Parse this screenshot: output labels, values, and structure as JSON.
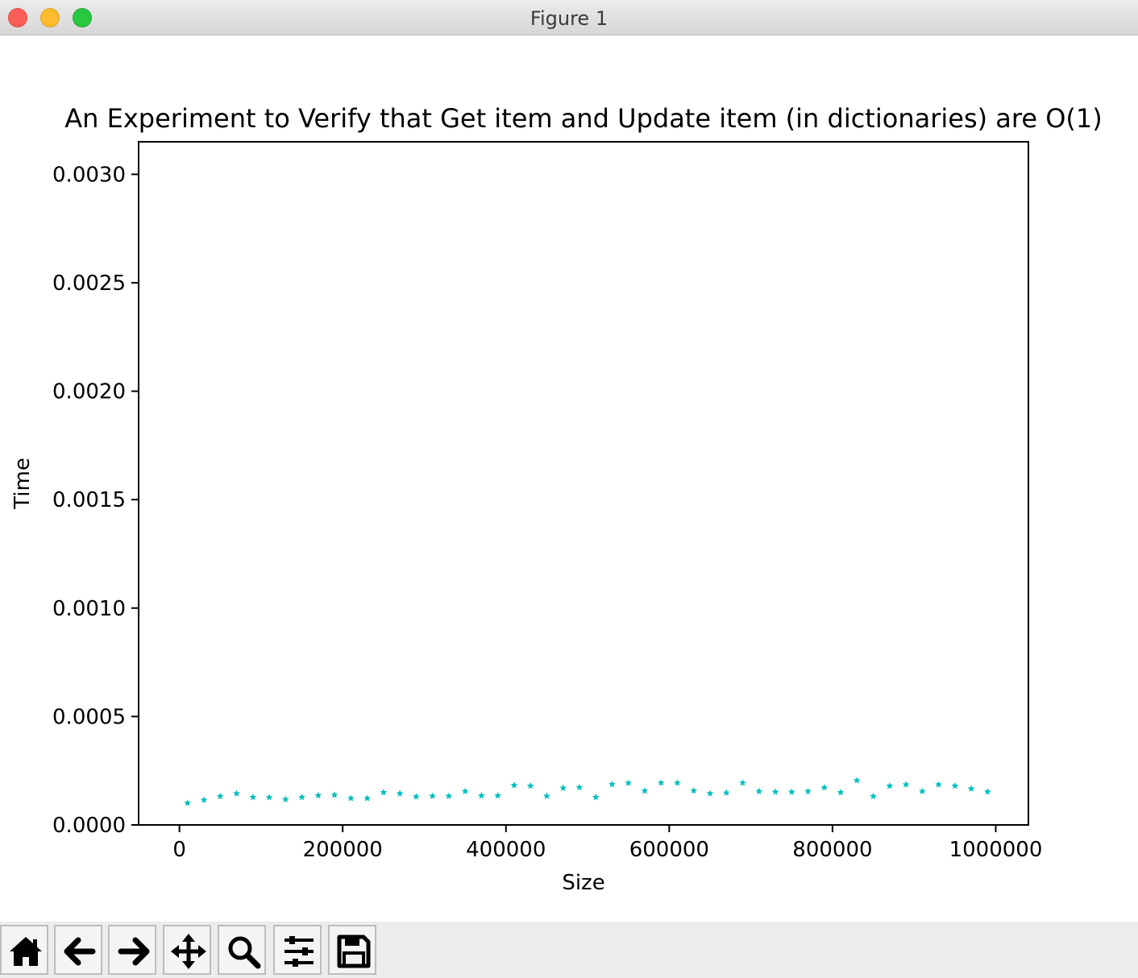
{
  "window": {
    "title": "Figure 1"
  },
  "toolbar": {
    "buttons": [
      {
        "name": "home-button",
        "icon": "home-icon"
      },
      {
        "name": "back-button",
        "icon": "arrow-left-icon"
      },
      {
        "name": "forward-button",
        "icon": "arrow-right-icon"
      },
      {
        "name": "pan-button",
        "icon": "move-icon"
      },
      {
        "name": "zoom-button",
        "icon": "magnifier-icon"
      },
      {
        "name": "configure-subplots-button",
        "icon": "sliders-icon"
      },
      {
        "name": "save-button",
        "icon": "floppy-disk-icon"
      }
    ]
  },
  "chart_data": {
    "type": "scatter",
    "title": "An Experiment to Verify that Get item and Update item (in dictionaries) are O(1)",
    "xlabel": "Size",
    "ylabel": "Time",
    "xlim": [
      -50000,
      1040000
    ],
    "ylim": [
      0,
      0.00315
    ],
    "xticks": [
      0,
      200000,
      400000,
      600000,
      800000,
      1000000
    ],
    "xtick_labels": [
      "0",
      "200000",
      "400000",
      "600000",
      "800000",
      "1000000"
    ],
    "yticks": [
      0,
      0.0005,
      0.001,
      0.0015,
      0.002,
      0.0025,
      0.003
    ],
    "ytick_labels": [
      "0.0000",
      "0.0005",
      "0.0010",
      "0.0015",
      "0.0020",
      "0.0025",
      "0.0030"
    ],
    "marker": "star",
    "color": "#00bfbf",
    "grid": false,
    "x": [
      10000,
      30000,
      50000,
      70000,
      90000,
      110000,
      130000,
      150000,
      170000,
      190000,
      210000,
      230000,
      250000,
      270000,
      290000,
      310000,
      330000,
      350000,
      370000,
      390000,
      410000,
      430000,
      450000,
      470000,
      490000,
      510000,
      530000,
      550000,
      570000,
      590000,
      610000,
      630000,
      650000,
      670000,
      690000,
      710000,
      730000,
      750000,
      770000,
      790000,
      810000,
      830000,
      850000,
      870000,
      890000,
      910000,
      930000,
      950000,
      970000,
      990000
    ],
    "y": [
      0.000101,
      0.000115,
      0.000132,
      0.000145,
      0.000128,
      0.000127,
      0.000118,
      0.000128,
      0.000136,
      0.000138,
      0.000123,
      0.000123,
      0.00015,
      0.000145,
      0.00013,
      0.000133,
      0.000133,
      0.000155,
      0.000135,
      0.000135,
      0.000183,
      0.00018,
      0.000133,
      0.00017,
      0.000173,
      0.000128,
      0.000187,
      0.000193,
      0.000157,
      0.000194,
      0.000194,
      0.000158,
      0.000145,
      0.000148,
      0.000194,
      0.000155,
      0.000152,
      0.000152,
      0.000155,
      0.000172,
      0.00015,
      0.000205,
      0.000132,
      0.00018,
      0.000186,
      0.000155,
      0.000186,
      0.00018,
      0.000167,
      0.000153
    ]
  }
}
